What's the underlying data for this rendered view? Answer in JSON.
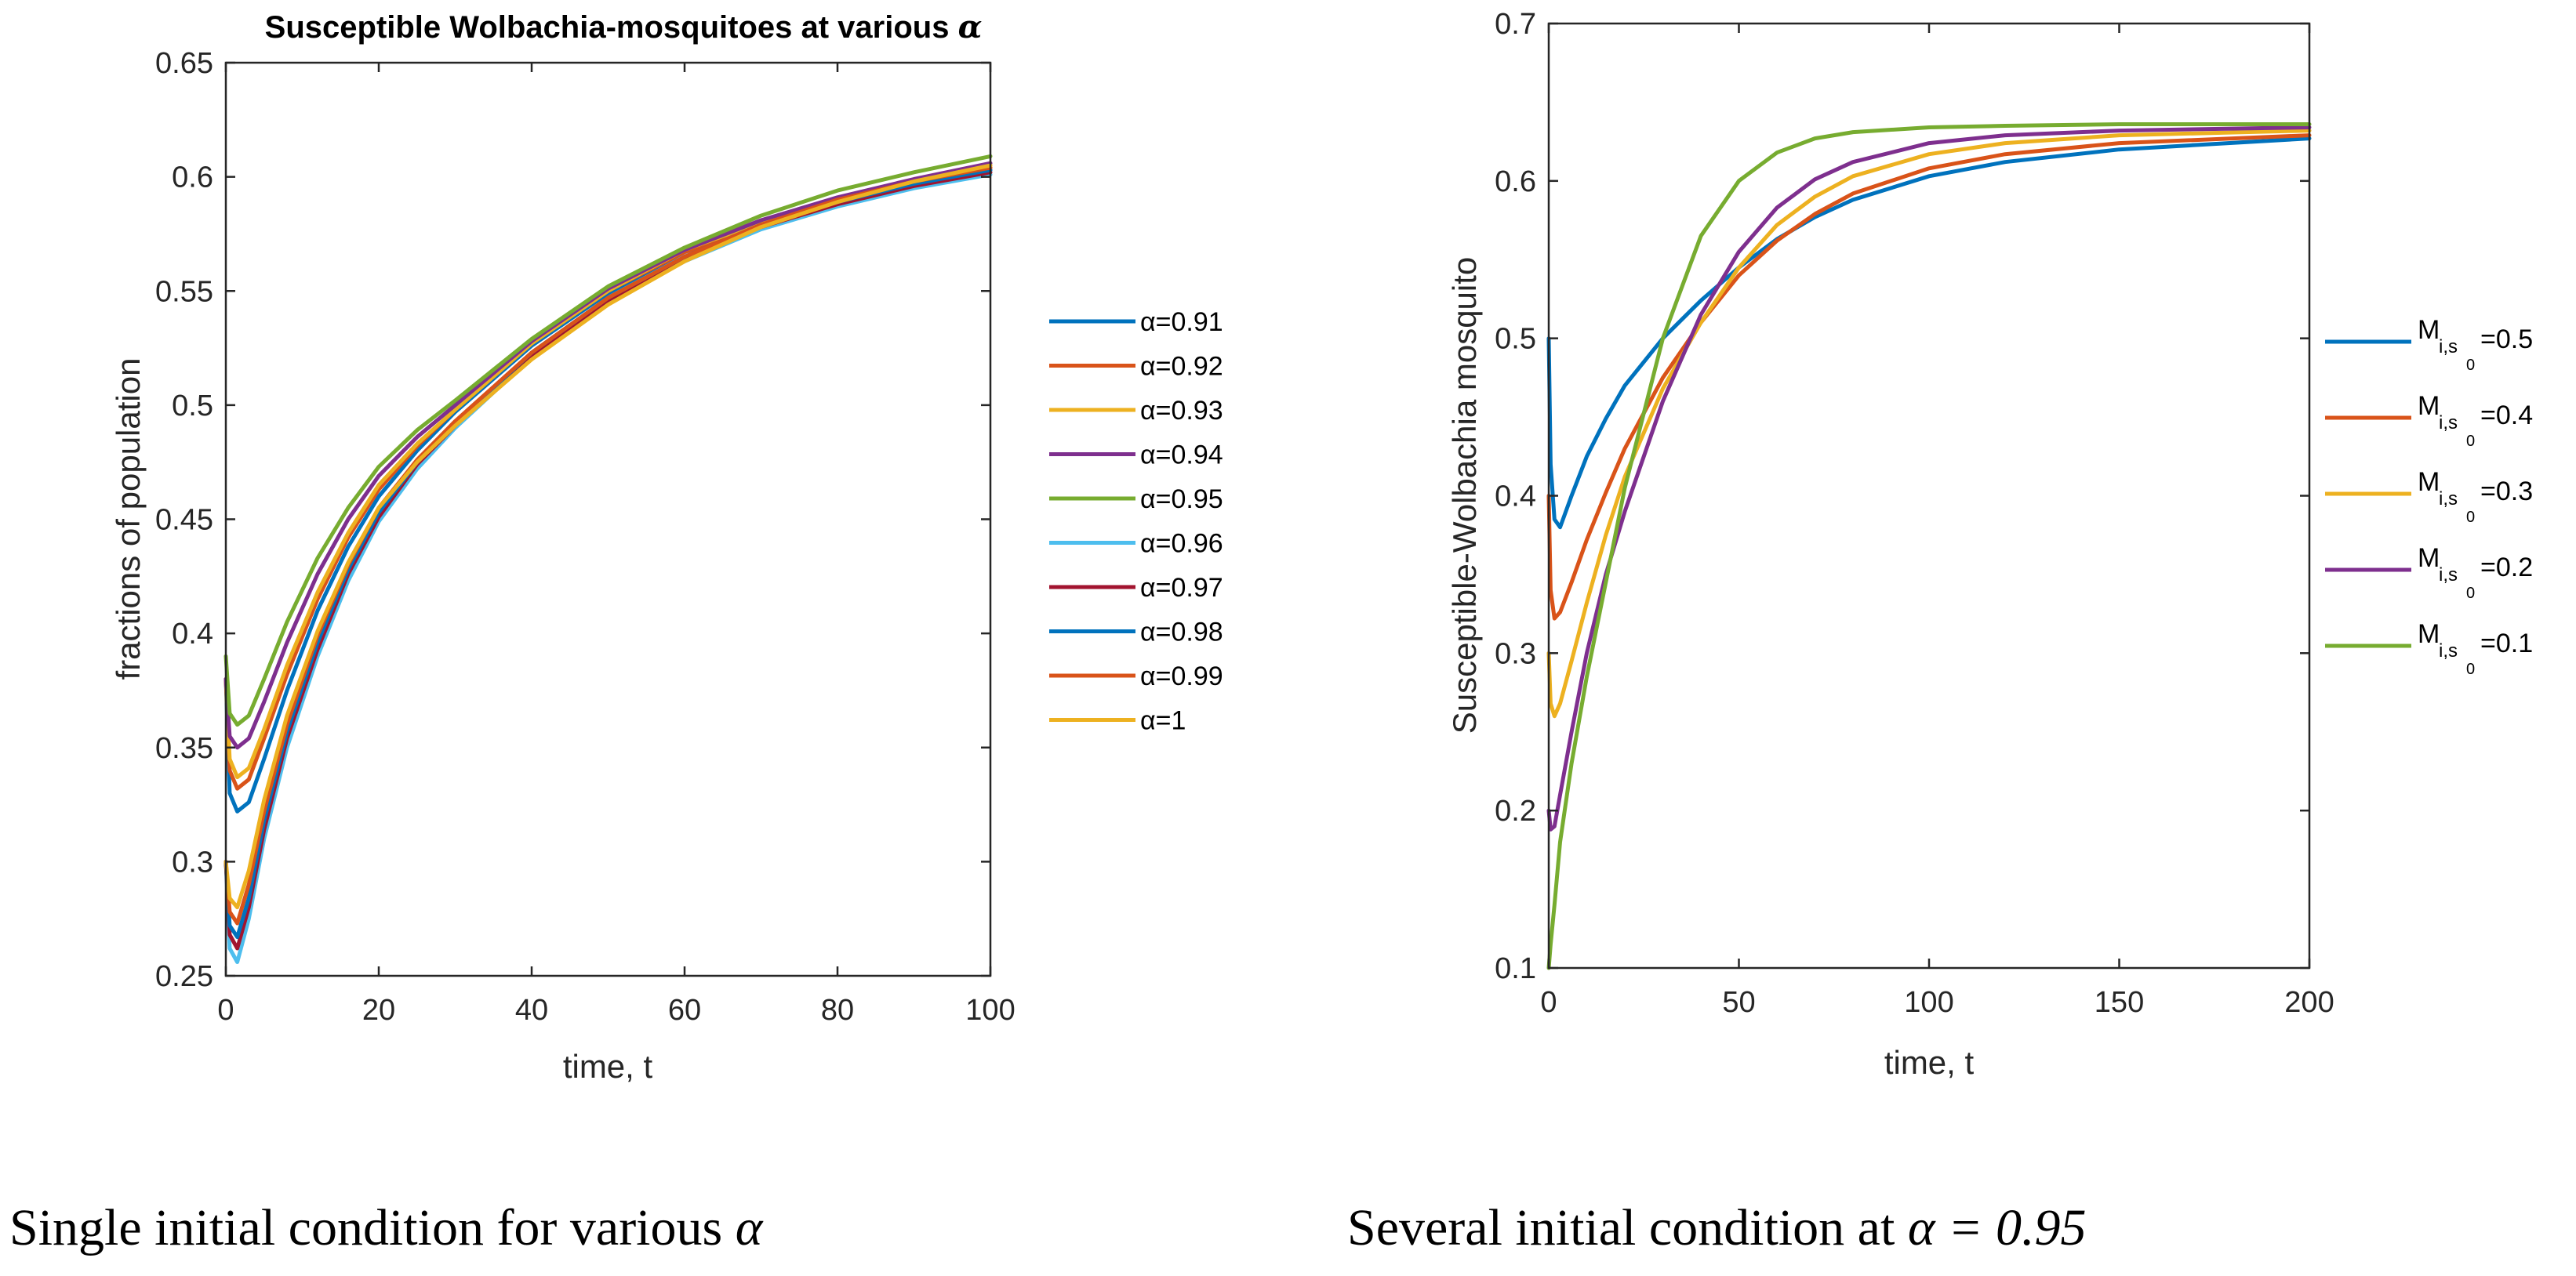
{
  "chart_data": [
    {
      "type": "line",
      "title": "Susceptible Wolbachia-mosquitoes at various α",
      "xlabel": "time, t",
      "ylabel": "fractions of population",
      "xlim": [
        0,
        100
      ],
      "ylim": [
        0.25,
        0.65
      ],
      "xticks": [
        "0",
        "20",
        "40",
        "60",
        "80",
        "100"
      ],
      "yticks": [
        "0.25",
        "0.3",
        "0.35",
        "0.4",
        "0.45",
        "0.5",
        "0.55",
        "0.6",
        "0.65"
      ],
      "legend_position": "outside-right",
      "caption_text": "Single initial condition for various ",
      "caption_symbol": "α",
      "series": [
        {
          "name": "α=0.91",
          "color": "#0072BD",
          "x": [
            0,
            0.5,
            1.5,
            3,
            5,
            8,
            12,
            16,
            20,
            25,
            30,
            40,
            50,
            60,
            70,
            80,
            90,
            100
          ],
          "y": [
            0.38,
            0.33,
            0.322,
            0.326,
            0.345,
            0.375,
            0.41,
            0.438,
            0.46,
            0.48,
            0.497,
            0.526,
            0.549,
            0.567,
            0.579,
            0.589,
            0.596,
            0.603
          ]
        },
        {
          "name": "α=0.92",
          "color": "#D95319",
          "x": [
            0,
            0.5,
            1.5,
            3,
            5,
            8,
            12,
            16,
            20,
            25,
            30,
            40,
            50,
            60,
            70,
            80,
            90,
            100
          ],
          "y": [
            0.38,
            0.34,
            0.332,
            0.336,
            0.354,
            0.382,
            0.415,
            0.442,
            0.463,
            0.482,
            0.498,
            0.527,
            0.55,
            0.567,
            0.579,
            0.589,
            0.597,
            0.604
          ]
        },
        {
          "name": "α=0.93",
          "color": "#EDB120",
          "x": [
            0,
            0.5,
            1.5,
            3,
            5,
            8,
            12,
            16,
            20,
            25,
            30,
            40,
            50,
            60,
            70,
            80,
            90,
            100
          ],
          "y": [
            0.38,
            0.345,
            0.337,
            0.341,
            0.358,
            0.386,
            0.418,
            0.444,
            0.465,
            0.483,
            0.498,
            0.527,
            0.55,
            0.568,
            0.58,
            0.59,
            0.598,
            0.605
          ]
        },
        {
          "name": "α=0.94",
          "color": "#7E2F8E",
          "x": [
            0,
            0.5,
            1.5,
            3,
            5,
            8,
            12,
            16,
            20,
            25,
            30,
            40,
            50,
            60,
            70,
            80,
            90,
            100
          ],
          "y": [
            0.38,
            0.355,
            0.35,
            0.354,
            0.37,
            0.396,
            0.426,
            0.45,
            0.469,
            0.486,
            0.5,
            0.528,
            0.551,
            0.568,
            0.581,
            0.591,
            0.599,
            0.606
          ]
        },
        {
          "name": "α=0.95",
          "color": "#77AC30",
          "x": [
            0,
            0.5,
            1.5,
            3,
            5,
            8,
            12,
            16,
            20,
            25,
            30,
            40,
            50,
            60,
            70,
            80,
            90,
            100
          ],
          "y": [
            0.39,
            0.365,
            0.36,
            0.364,
            0.38,
            0.405,
            0.433,
            0.455,
            0.473,
            0.489,
            0.502,
            0.529,
            0.552,
            0.569,
            0.583,
            0.594,
            0.602,
            0.609
          ]
        },
        {
          "name": "α=0.96",
          "color": "#4DBEEE",
          "x": [
            0,
            0.5,
            1.5,
            3,
            5,
            8,
            12,
            16,
            20,
            25,
            30,
            40,
            50,
            60,
            70,
            80,
            90,
            100
          ],
          "y": [
            0.3,
            0.262,
            0.256,
            0.275,
            0.31,
            0.35,
            0.39,
            0.423,
            0.449,
            0.472,
            0.49,
            0.521,
            0.545,
            0.563,
            0.577,
            0.587,
            0.595,
            0.601
          ]
        },
        {
          "name": "α=0.97",
          "color": "#A2142F",
          "x": [
            0,
            0.5,
            1.5,
            3,
            5,
            8,
            12,
            16,
            20,
            25,
            30,
            40,
            50,
            60,
            70,
            80,
            90,
            100
          ],
          "y": [
            0.3,
            0.268,
            0.262,
            0.28,
            0.314,
            0.354,
            0.393,
            0.426,
            0.451,
            0.474,
            0.491,
            0.522,
            0.546,
            0.564,
            0.578,
            0.588,
            0.596,
            0.602
          ]
        },
        {
          "name": "α=0.98",
          "color": "#0072BD",
          "x": [
            0,
            0.5,
            1.5,
            3,
            5,
            8,
            12,
            16,
            20,
            25,
            30,
            40,
            50,
            60,
            70,
            80,
            90,
            100
          ],
          "y": [
            0.3,
            0.272,
            0.267,
            0.284,
            0.318,
            0.357,
            0.396,
            0.428,
            0.453,
            0.475,
            0.492,
            0.523,
            0.547,
            0.565,
            0.579,
            0.589,
            0.597,
            0.603
          ]
        },
        {
          "name": "α=0.99",
          "color": "#D95319",
          "x": [
            0,
            0.5,
            1.5,
            3,
            5,
            8,
            12,
            16,
            20,
            25,
            30,
            40,
            50,
            60,
            70,
            80,
            90,
            100
          ],
          "y": [
            0.3,
            0.278,
            0.273,
            0.29,
            0.322,
            0.36,
            0.399,
            0.43,
            0.455,
            0.476,
            0.493,
            0.523,
            0.547,
            0.565,
            0.579,
            0.59,
            0.598,
            0.604
          ]
        },
        {
          "name": "α=1",
          "color": "#EDB120",
          "x": [
            0,
            0.5,
            1.5,
            3,
            5,
            8,
            12,
            16,
            20,
            25,
            30,
            40,
            50,
            60,
            70,
            80,
            90,
            100
          ],
          "y": [
            0.3,
            0.284,
            0.28,
            0.296,
            0.327,
            0.364,
            0.401,
            0.431,
            0.455,
            0.475,
            0.491,
            0.52,
            0.544,
            0.563,
            0.578,
            0.589,
            0.598,
            0.605
          ]
        }
      ]
    },
    {
      "type": "line",
      "title": "",
      "xlabel": "time, t",
      "ylabel": "Susceptible-Wolbachia mosquito",
      "xlim": [
        0,
        200
      ],
      "ylim": [
        0.1,
        0.7
      ],
      "xticks": [
        "0",
        "50",
        "100",
        "150",
        "200"
      ],
      "yticks": [
        "0.1",
        "0.2",
        "0.3",
        "0.4",
        "0.5",
        "0.6",
        "0.7"
      ],
      "legend_position": "outside-right",
      "caption_text": "Several initial condition at ",
      "caption_symbol": "α = 0.95",
      "series": [
        {
          "name": "=0.5",
          "legend_main": "M",
          "legend_sub": "i,s",
          "legend_subsub": "0",
          "color": "#0072BD",
          "x": [
            0,
            0.5,
            1.5,
            3,
            6,
            10,
            15,
            20,
            30,
            40,
            50,
            60,
            70,
            80,
            100,
            120,
            150,
            200
          ],
          "y": [
            0.5,
            0.42,
            0.385,
            0.38,
            0.4,
            0.425,
            0.449,
            0.47,
            0.5,
            0.524,
            0.545,
            0.563,
            0.577,
            0.588,
            0.603,
            0.612,
            0.62,
            0.627
          ]
        },
        {
          "name": "=0.4",
          "legend_main": "M",
          "legend_sub": "i,s",
          "legend_subsub": "0",
          "color": "#D95319",
          "x": [
            0,
            0.5,
            1.5,
            3,
            6,
            10,
            15,
            20,
            30,
            40,
            50,
            60,
            70,
            80,
            100,
            120,
            150,
            200
          ],
          "y": [
            0.4,
            0.34,
            0.322,
            0.326,
            0.345,
            0.372,
            0.402,
            0.43,
            0.475,
            0.51,
            0.54,
            0.562,
            0.579,
            0.592,
            0.608,
            0.617,
            0.624,
            0.629
          ]
        },
        {
          "name": "=0.3",
          "legend_main": "M",
          "legend_sub": "i,s",
          "legend_subsub": "0",
          "color": "#EDB120",
          "x": [
            0,
            0.5,
            1.5,
            3,
            6,
            10,
            15,
            20,
            30,
            40,
            50,
            60,
            70,
            80,
            100,
            120,
            150,
            200
          ],
          "y": [
            0.3,
            0.268,
            0.26,
            0.268,
            0.295,
            0.332,
            0.375,
            0.412,
            0.468,
            0.51,
            0.545,
            0.572,
            0.59,
            0.603,
            0.617,
            0.624,
            0.629,
            0.632
          ]
        },
        {
          "name": "=0.2",
          "legend_main": "M",
          "legend_sub": "i,s",
          "legend_subsub": "0",
          "color": "#7E2F8E",
          "x": [
            0,
            0.5,
            1.5,
            3,
            6,
            10,
            15,
            20,
            30,
            40,
            50,
            60,
            70,
            80,
            100,
            120,
            150,
            200
          ],
          "y": [
            0.2,
            0.188,
            0.19,
            0.21,
            0.25,
            0.3,
            0.35,
            0.39,
            0.46,
            0.515,
            0.555,
            0.583,
            0.601,
            0.612,
            0.624,
            0.629,
            0.632,
            0.634
          ]
        },
        {
          "name": "=0.1",
          "legend_main": "M",
          "legend_sub": "i,s",
          "legend_subsub": "0",
          "color": "#77AC30",
          "x": [
            0,
            0.5,
            1.5,
            3,
            6,
            10,
            15,
            20,
            30,
            40,
            50,
            60,
            70,
            80,
            100,
            120,
            150,
            200
          ],
          "y": [
            0.1,
            0.115,
            0.14,
            0.18,
            0.23,
            0.285,
            0.345,
            0.405,
            0.5,
            0.565,
            0.6,
            0.618,
            0.627,
            0.631,
            0.634,
            0.635,
            0.636,
            0.636
          ]
        }
      ]
    }
  ]
}
